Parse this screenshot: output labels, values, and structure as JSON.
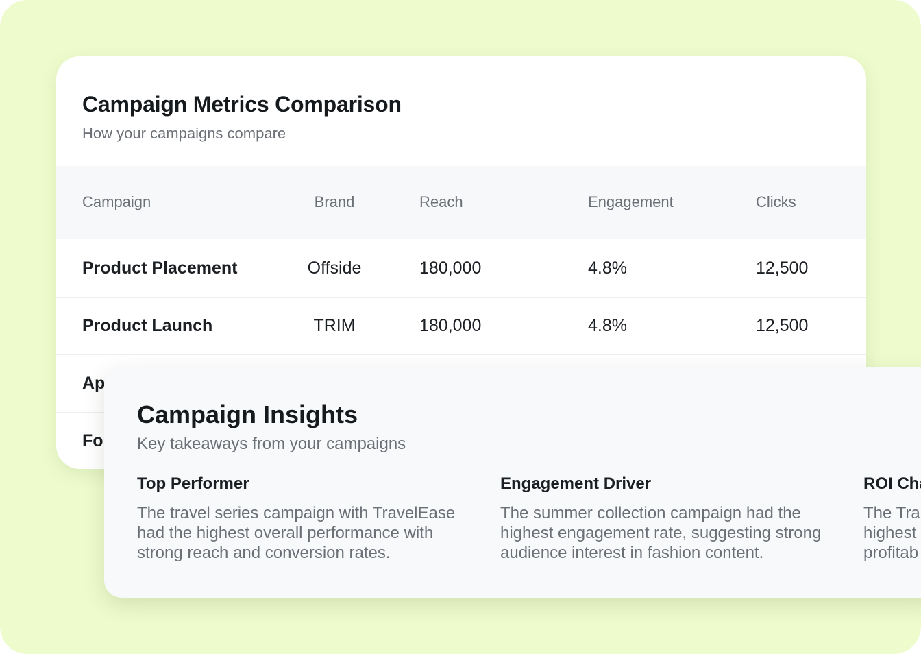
{
  "metrics": {
    "title": "Campaign Metrics Comparison",
    "subtitle": "How your campaigns compare",
    "columns": [
      "Campaign",
      "Brand",
      "Reach",
      "Engagement",
      "Clicks"
    ],
    "rows": [
      {
        "campaign": "Product Placement",
        "brand": "Offside",
        "reach": "180,000",
        "engagement": "4.8%",
        "clicks": "12,500"
      },
      {
        "campaign": "Product Launch",
        "brand": "TRIM",
        "reach": "180,000",
        "engagement": "4.8%",
        "clicks": "12,500"
      },
      {
        "campaign": "Ap",
        "brand": "",
        "reach": "",
        "engagement": "",
        "clicks": ""
      },
      {
        "campaign": "Fo",
        "brand": "",
        "reach": "",
        "engagement": "",
        "clicks": ""
      }
    ]
  },
  "insights": {
    "title": "Campaign Insights",
    "subtitle": "Key takeaways from your campaigns",
    "items": [
      {
        "heading": "Top Performer",
        "text": "The travel series campaign with TravelEase had the highest overall performance with strong reach and conversion rates."
      },
      {
        "heading": "Engagement Driver",
        "text": "The summer collection campaign had the highest engagement rate, suggesting strong audience interest in fashion content."
      },
      {
        "heading": "ROI Cha",
        "text": "The Tra highest profitab"
      }
    ]
  }
}
